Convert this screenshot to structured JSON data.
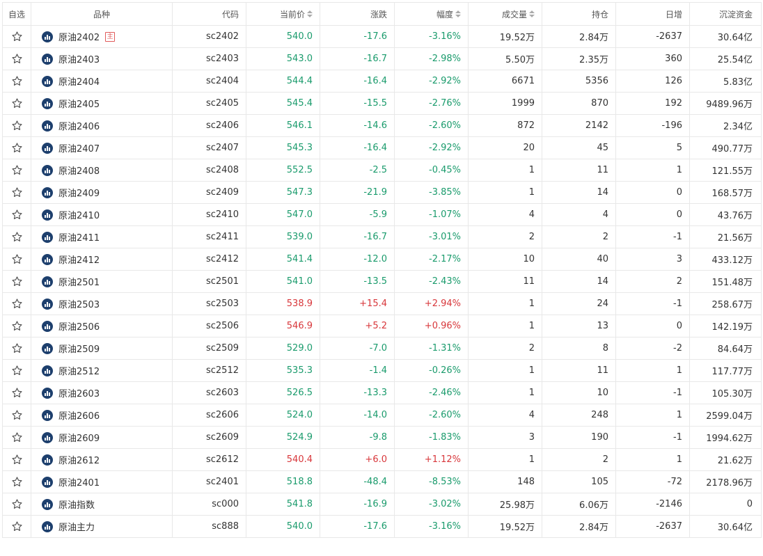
{
  "colors": {
    "up": "#d8373b",
    "down": "#1a9b6c",
    "icon_bg": "#1d3f6d",
    "border": "#e8e8e8"
  },
  "header": {
    "favorite": "自选",
    "name": "品种",
    "code": "代码",
    "price": "当前价",
    "change": "涨跌",
    "change_pct": "幅度",
    "volume": "成交量",
    "open_interest": "持仓",
    "daily_increase": "日增",
    "capital": "沉淀资金",
    "sortable": [
      "price",
      "change_pct",
      "volume"
    ]
  },
  "rows": [
    {
      "name": "原油2402",
      "badge": "主",
      "code": "sc2402",
      "price": "540.0",
      "change": "-17.6",
      "pct": "-3.16%",
      "volume": "19.52万",
      "oi": "2.84万",
      "inc": "-2637",
      "capital": "30.64亿",
      "trend": "down"
    },
    {
      "name": "原油2403",
      "badge": "",
      "code": "sc2403",
      "price": "543.0",
      "change": "-16.7",
      "pct": "-2.98%",
      "volume": "5.50万",
      "oi": "2.35万",
      "inc": "360",
      "capital": "25.54亿",
      "trend": "down"
    },
    {
      "name": "原油2404",
      "badge": "",
      "code": "sc2404",
      "price": "544.4",
      "change": "-16.4",
      "pct": "-2.92%",
      "volume": "6671",
      "oi": "5356",
      "inc": "126",
      "capital": "5.83亿",
      "trend": "down"
    },
    {
      "name": "原油2405",
      "badge": "",
      "code": "sc2405",
      "price": "545.4",
      "change": "-15.5",
      "pct": "-2.76%",
      "volume": "1999",
      "oi": "870",
      "inc": "192",
      "capital": "9489.96万",
      "trend": "down"
    },
    {
      "name": "原油2406",
      "badge": "",
      "code": "sc2406",
      "price": "546.1",
      "change": "-14.6",
      "pct": "-2.60%",
      "volume": "872",
      "oi": "2142",
      "inc": "-196",
      "capital": "2.34亿",
      "trend": "down"
    },
    {
      "name": "原油2407",
      "badge": "",
      "code": "sc2407",
      "price": "545.3",
      "change": "-16.4",
      "pct": "-2.92%",
      "volume": "20",
      "oi": "45",
      "inc": "5",
      "capital": "490.77万",
      "trend": "down"
    },
    {
      "name": "原油2408",
      "badge": "",
      "code": "sc2408",
      "price": "552.5",
      "change": "-2.5",
      "pct": "-0.45%",
      "volume": "1",
      "oi": "11",
      "inc": "1",
      "capital": "121.55万",
      "trend": "down"
    },
    {
      "name": "原油2409",
      "badge": "",
      "code": "sc2409",
      "price": "547.3",
      "change": "-21.9",
      "pct": "-3.85%",
      "volume": "1",
      "oi": "14",
      "inc": "0",
      "capital": "168.57万",
      "trend": "down"
    },
    {
      "name": "原油2410",
      "badge": "",
      "code": "sc2410",
      "price": "547.0",
      "change": "-5.9",
      "pct": "-1.07%",
      "volume": "4",
      "oi": "4",
      "inc": "0",
      "capital": "43.76万",
      "trend": "down"
    },
    {
      "name": "原油2411",
      "badge": "",
      "code": "sc2411",
      "price": "539.0",
      "change": "-16.7",
      "pct": "-3.01%",
      "volume": "2",
      "oi": "2",
      "inc": "-1",
      "capital": "21.56万",
      "trend": "down"
    },
    {
      "name": "原油2412",
      "badge": "",
      "code": "sc2412",
      "price": "541.4",
      "change": "-12.0",
      "pct": "-2.17%",
      "volume": "10",
      "oi": "40",
      "inc": "3",
      "capital": "433.12万",
      "trend": "down"
    },
    {
      "name": "原油2501",
      "badge": "",
      "code": "sc2501",
      "price": "541.0",
      "change": "-13.5",
      "pct": "-2.43%",
      "volume": "11",
      "oi": "14",
      "inc": "2",
      "capital": "151.48万",
      "trend": "down"
    },
    {
      "name": "原油2503",
      "badge": "",
      "code": "sc2503",
      "price": "538.9",
      "change": "+15.4",
      "pct": "+2.94%",
      "volume": "1",
      "oi": "24",
      "inc": "-1",
      "capital": "258.67万",
      "trend": "up"
    },
    {
      "name": "原油2506",
      "badge": "",
      "code": "sc2506",
      "price": "546.9",
      "change": "+5.2",
      "pct": "+0.96%",
      "volume": "1",
      "oi": "13",
      "inc": "0",
      "capital": "142.19万",
      "trend": "up"
    },
    {
      "name": "原油2509",
      "badge": "",
      "code": "sc2509",
      "price": "529.0",
      "change": "-7.0",
      "pct": "-1.31%",
      "volume": "2",
      "oi": "8",
      "inc": "-2",
      "capital": "84.64万",
      "trend": "down"
    },
    {
      "name": "原油2512",
      "badge": "",
      "code": "sc2512",
      "price": "535.3",
      "change": "-1.4",
      "pct": "-0.26%",
      "volume": "1",
      "oi": "11",
      "inc": "1",
      "capital": "117.77万",
      "trend": "down"
    },
    {
      "name": "原油2603",
      "badge": "",
      "code": "sc2603",
      "price": "526.5",
      "change": "-13.3",
      "pct": "-2.46%",
      "volume": "1",
      "oi": "10",
      "inc": "-1",
      "capital": "105.30万",
      "trend": "down"
    },
    {
      "name": "原油2606",
      "badge": "",
      "code": "sc2606",
      "price": "524.0",
      "change": "-14.0",
      "pct": "-2.60%",
      "volume": "4",
      "oi": "248",
      "inc": "1",
      "capital": "2599.04万",
      "trend": "down"
    },
    {
      "name": "原油2609",
      "badge": "",
      "code": "sc2609",
      "price": "524.9",
      "change": "-9.8",
      "pct": "-1.83%",
      "volume": "3",
      "oi": "190",
      "inc": "-1",
      "capital": "1994.62万",
      "trend": "down"
    },
    {
      "name": "原油2612",
      "badge": "",
      "code": "sc2612",
      "price": "540.4",
      "change": "+6.0",
      "pct": "+1.12%",
      "volume": "1",
      "oi": "2",
      "inc": "1",
      "capital": "21.62万",
      "trend": "up"
    },
    {
      "name": "原油2401",
      "badge": "",
      "code": "sc2401",
      "price": "518.8",
      "change": "-48.4",
      "pct": "-8.53%",
      "volume": "148",
      "oi": "105",
      "inc": "-72",
      "capital": "2178.96万",
      "trend": "down"
    },
    {
      "name": "原油指数",
      "badge": "",
      "code": "sc000",
      "price": "541.8",
      "change": "-16.9",
      "pct": "-3.02%",
      "volume": "25.98万",
      "oi": "6.06万",
      "inc": "-2146",
      "capital": "0",
      "trend": "down"
    },
    {
      "name": "原油主力",
      "badge": "",
      "code": "sc888",
      "price": "540.0",
      "change": "-17.6",
      "pct": "-3.16%",
      "volume": "19.52万",
      "oi": "2.84万",
      "inc": "-2637",
      "capital": "30.64亿",
      "trend": "down"
    }
  ]
}
